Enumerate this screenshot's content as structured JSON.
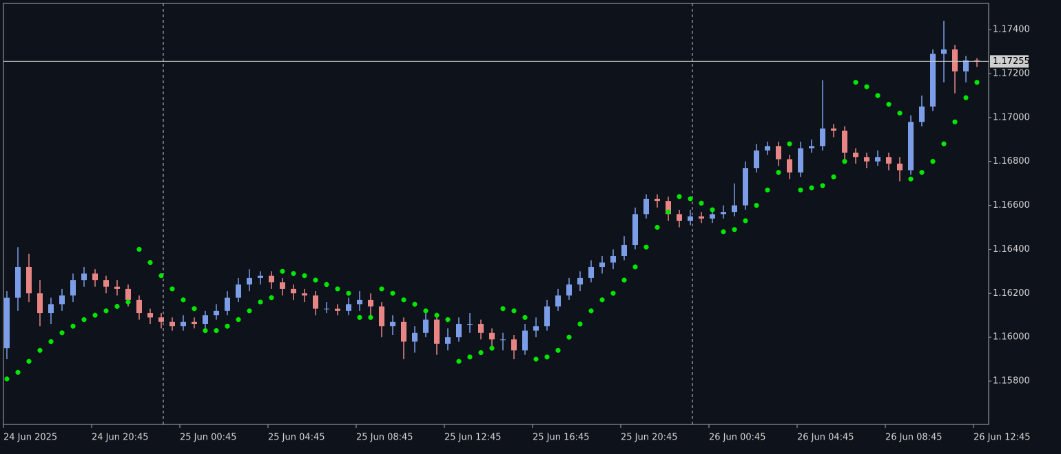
{
  "chart_data": {
    "type": "candlestick",
    "categories": [
      "24 Jun 2025",
      null,
      null,
      null,
      null,
      null,
      null,
      null,
      "24 Jun 20:45",
      null,
      null,
      null,
      null,
      null,
      null,
      null,
      "25 Jun 00:45",
      null,
      null,
      null,
      null,
      null,
      null,
      null,
      "25 Jun 04:45",
      null,
      null,
      null,
      null,
      null,
      null,
      null,
      "25 Jun 08:45",
      null,
      null,
      null,
      null,
      null,
      null,
      null,
      "25 Jun 12:45",
      null,
      null,
      null,
      null,
      null,
      null,
      null,
      "25 Jun 16:45",
      null,
      null,
      null,
      null,
      null,
      null,
      null,
      "25 Jun 20:45",
      null,
      null,
      null,
      null,
      null,
      null,
      null,
      "26 Jun 00:45",
      null,
      null,
      null,
      null,
      null,
      null,
      null,
      "26 Jun 04:45",
      null,
      null,
      null,
      null,
      null,
      null,
      null,
      "26 Jun 08:45",
      null,
      null,
      null,
      null,
      null,
      null,
      null,
      "26 Jun 12:45"
    ],
    "open": [
      1.1595,
      1.1618,
      1.1632,
      1.162,
      1.1611,
      1.1615,
      1.1619,
      1.1626,
      1.1629,
      1.1626,
      1.1623,
      1.1622,
      1.1617,
      1.1611,
      1.1609,
      1.1607,
      1.1605,
      1.1607,
      1.1606,
      1.161,
      1.1612,
      1.1618,
      1.1624,
      1.1627,
      1.1628,
      1.1625,
      1.1622,
      1.162,
      1.1619,
      1.1613,
      1.1613,
      1.1612,
      1.1615,
      1.1617,
      1.1614,
      1.1605,
      1.1607,
      1.1598,
      1.1602,
      1.1608,
      1.1597,
      1.16,
      1.1606,
      1.1606,
      1.1602,
      1.1599,
      1.1599,
      1.1594,
      1.1603,
      1.1605,
      1.1614,
      1.1619,
      1.1624,
      1.1627,
      1.1632,
      1.1634,
      1.1637,
      1.1642,
      1.1656,
      1.1663,
      1.1662,
      1.1656,
      1.1653,
      1.1655,
      1.1654,
      1.1656,
      1.1657,
      1.166,
      1.1677,
      1.1685,
      1.1687,
      1.1681,
      1.1675,
      1.1686,
      1.1687,
      1.1695,
      1.1694,
      1.1684,
      1.1682,
      1.168,
      1.1682,
      1.1679,
      1.1676,
      1.1698,
      1.1705,
      1.1729,
      1.1731,
      1.1721,
      1.1726
    ],
    "high": [
      1.1621,
      1.1641,
      1.1638,
      1.1626,
      1.1618,
      1.1622,
      1.1629,
      1.1632,
      1.1631,
      1.1628,
      1.1626,
      1.1624,
      1.1619,
      1.1613,
      1.1611,
      1.1609,
      1.161,
      1.1609,
      1.1612,
      1.1615,
      1.1621,
      1.1627,
      1.1631,
      1.163,
      1.163,
      1.1627,
      1.1624,
      1.1622,
      1.1621,
      1.1616,
      1.1615,
      1.1618,
      1.1621,
      1.162,
      1.1616,
      1.161,
      1.1609,
      1.1605,
      1.1611,
      1.161,
      1.1604,
      1.1609,
      1.1611,
      1.1608,
      1.1604,
      1.1602,
      1.1601,
      1.1606,
      1.1609,
      1.1617,
      1.1622,
      1.1627,
      1.163,
      1.1635,
      1.1637,
      1.164,
      1.1646,
      1.1659,
      1.1665,
      1.1665,
      1.1664,
      1.1658,
      1.1658,
      1.1657,
      1.1658,
      1.166,
      1.167,
      1.168,
      1.1688,
      1.1689,
      1.1689,
      1.1683,
      1.1689,
      1.169,
      1.1717,
      1.1697,
      1.1696,
      1.1686,
      1.1684,
      1.1685,
      1.1684,
      1.1682,
      1.1701,
      1.171,
      1.1731,
      1.1744,
      1.1733,
      1.1728,
      1.1727
    ],
    "low": [
      1.159,
      1.1612,
      1.1616,
      1.1605,
      1.1606,
      1.1612,
      1.1616,
      1.1623,
      1.1623,
      1.162,
      1.1619,
      1.1614,
      1.1608,
      1.1606,
      1.1604,
      1.1603,
      1.1603,
      1.1604,
      1.1604,
      1.1608,
      1.161,
      1.1616,
      1.1621,
      1.1624,
      1.1622,
      1.1619,
      1.1617,
      1.1616,
      1.161,
      1.1611,
      1.161,
      1.161,
      1.1612,
      1.161,
      1.16,
      1.1601,
      1.159,
      1.1593,
      1.16,
      1.1592,
      1.1594,
      1.1598,
      1.1602,
      1.1599,
      1.1595,
      1.1594,
      1.159,
      1.1592,
      1.16,
      1.1603,
      1.1612,
      1.1617,
      1.1621,
      1.1625,
      1.1629,
      1.1631,
      1.1635,
      1.164,
      1.1654,
      1.1659,
      1.1653,
      1.165,
      1.1651,
      1.1652,
      1.1652,
      1.1654,
      1.1655,
      1.1658,
      1.1675,
      1.1683,
      1.1678,
      1.1672,
      1.1673,
      1.1684,
      1.1685,
      1.1691,
      1.168,
      1.1679,
      1.1677,
      1.1678,
      1.1676,
      1.1671,
      1.1674,
      1.1696,
      1.1703,
      1.1716,
      1.1711,
      1.1716,
      1.1723
    ],
    "close": [
      1.1618,
      1.1632,
      1.162,
      1.1611,
      1.1615,
      1.1619,
      1.1626,
      1.1629,
      1.1626,
      1.1623,
      1.1622,
      1.1617,
      1.1611,
      1.1609,
      1.1607,
      1.1605,
      1.1607,
      1.1606,
      1.161,
      1.1612,
      1.1618,
      1.1624,
      1.1627,
      1.1628,
      1.1625,
      1.1622,
      1.162,
      1.1619,
      1.1613,
      1.1613,
      1.1612,
      1.1615,
      1.1617,
      1.1614,
      1.1605,
      1.1607,
      1.1598,
      1.1602,
      1.1608,
      1.1597,
      1.16,
      1.1606,
      1.1606,
      1.1602,
      1.1599,
      1.1599,
      1.1594,
      1.1603,
      1.1605,
      1.1614,
      1.1619,
      1.1624,
      1.1627,
      1.1632,
      1.1634,
      1.1637,
      1.1642,
      1.1656,
      1.1663,
      1.1662,
      1.1656,
      1.1653,
      1.1655,
      1.1654,
      1.1656,
      1.1657,
      1.166,
      1.1677,
      1.1685,
      1.1687,
      1.1681,
      1.1675,
      1.1686,
      1.1687,
      1.1695,
      1.1694,
      1.1684,
      1.1682,
      1.168,
      1.1682,
      1.1679,
      1.1676,
      1.1698,
      1.1705,
      1.1729,
      1.1731,
      1.1721,
      1.1726,
      1.17255
    ],
    "sar": [
      1.1581,
      1.1584,
      1.1589,
      1.1594,
      1.1598,
      1.1602,
      1.1605,
      1.1608,
      1.161,
      1.1612,
      1.1614,
      1.1616,
      1.164,
      1.1634,
      1.1628,
      1.1622,
      1.1617,
      1.1613,
      1.1603,
      1.1603,
      1.1605,
      1.1608,
      1.1612,
      1.1616,
      1.1618,
      1.163,
      1.1629,
      1.1628,
      1.1626,
      1.1624,
      1.1622,
      1.162,
      1.1609,
      1.1609,
      1.1622,
      1.162,
      1.1617,
      1.1615,
      1.1612,
      1.161,
      1.1608,
      1.1589,
      1.1591,
      1.1593,
      1.1595,
      1.1613,
      1.1612,
      1.1609,
      1.159,
      1.1591,
      1.1594,
      1.16,
      1.1606,
      1.1612,
      1.1617,
      1.162,
      1.1626,
      1.1632,
      1.1641,
      1.165,
      1.1657,
      1.1664,
      1.1663,
      1.1661,
      1.1658,
      1.1648,
      1.1649,
      1.1653,
      1.166,
      1.1667,
      1.1675,
      1.1688,
      1.1667,
      1.1668,
      1.1669,
      1.1673,
      1.168,
      1.1716,
      1.1714,
      1.171,
      1.1706,
      1.1702,
      1.1672,
      1.1675,
      1.168,
      1.1688,
      1.1698,
      1.1709,
      1.1716
    ],
    "up_color": "#7c9de8",
    "down_color": "#e88585",
    "sar_color": "#00e600",
    "current_price": 1.17255,
    "ylim": [
      1.15603,
      1.17519
    ],
    "yticks": [
      {
        "value": 1.158,
        "label": "1.15800"
      },
      {
        "value": 1.16,
        "label": "1.16000"
      },
      {
        "value": 1.162,
        "label": "1.16200"
      },
      {
        "value": 1.164,
        "label": "1.16400"
      },
      {
        "value": 1.166,
        "label": "1.16600"
      },
      {
        "value": 1.168,
        "label": "1.16800"
      },
      {
        "value": 1.17,
        "label": "1.17000"
      },
      {
        "value": 1.172,
        "label": "1.17200"
      },
      {
        "value": 1.174,
        "label": "1.17400"
      }
    ]
  }
}
